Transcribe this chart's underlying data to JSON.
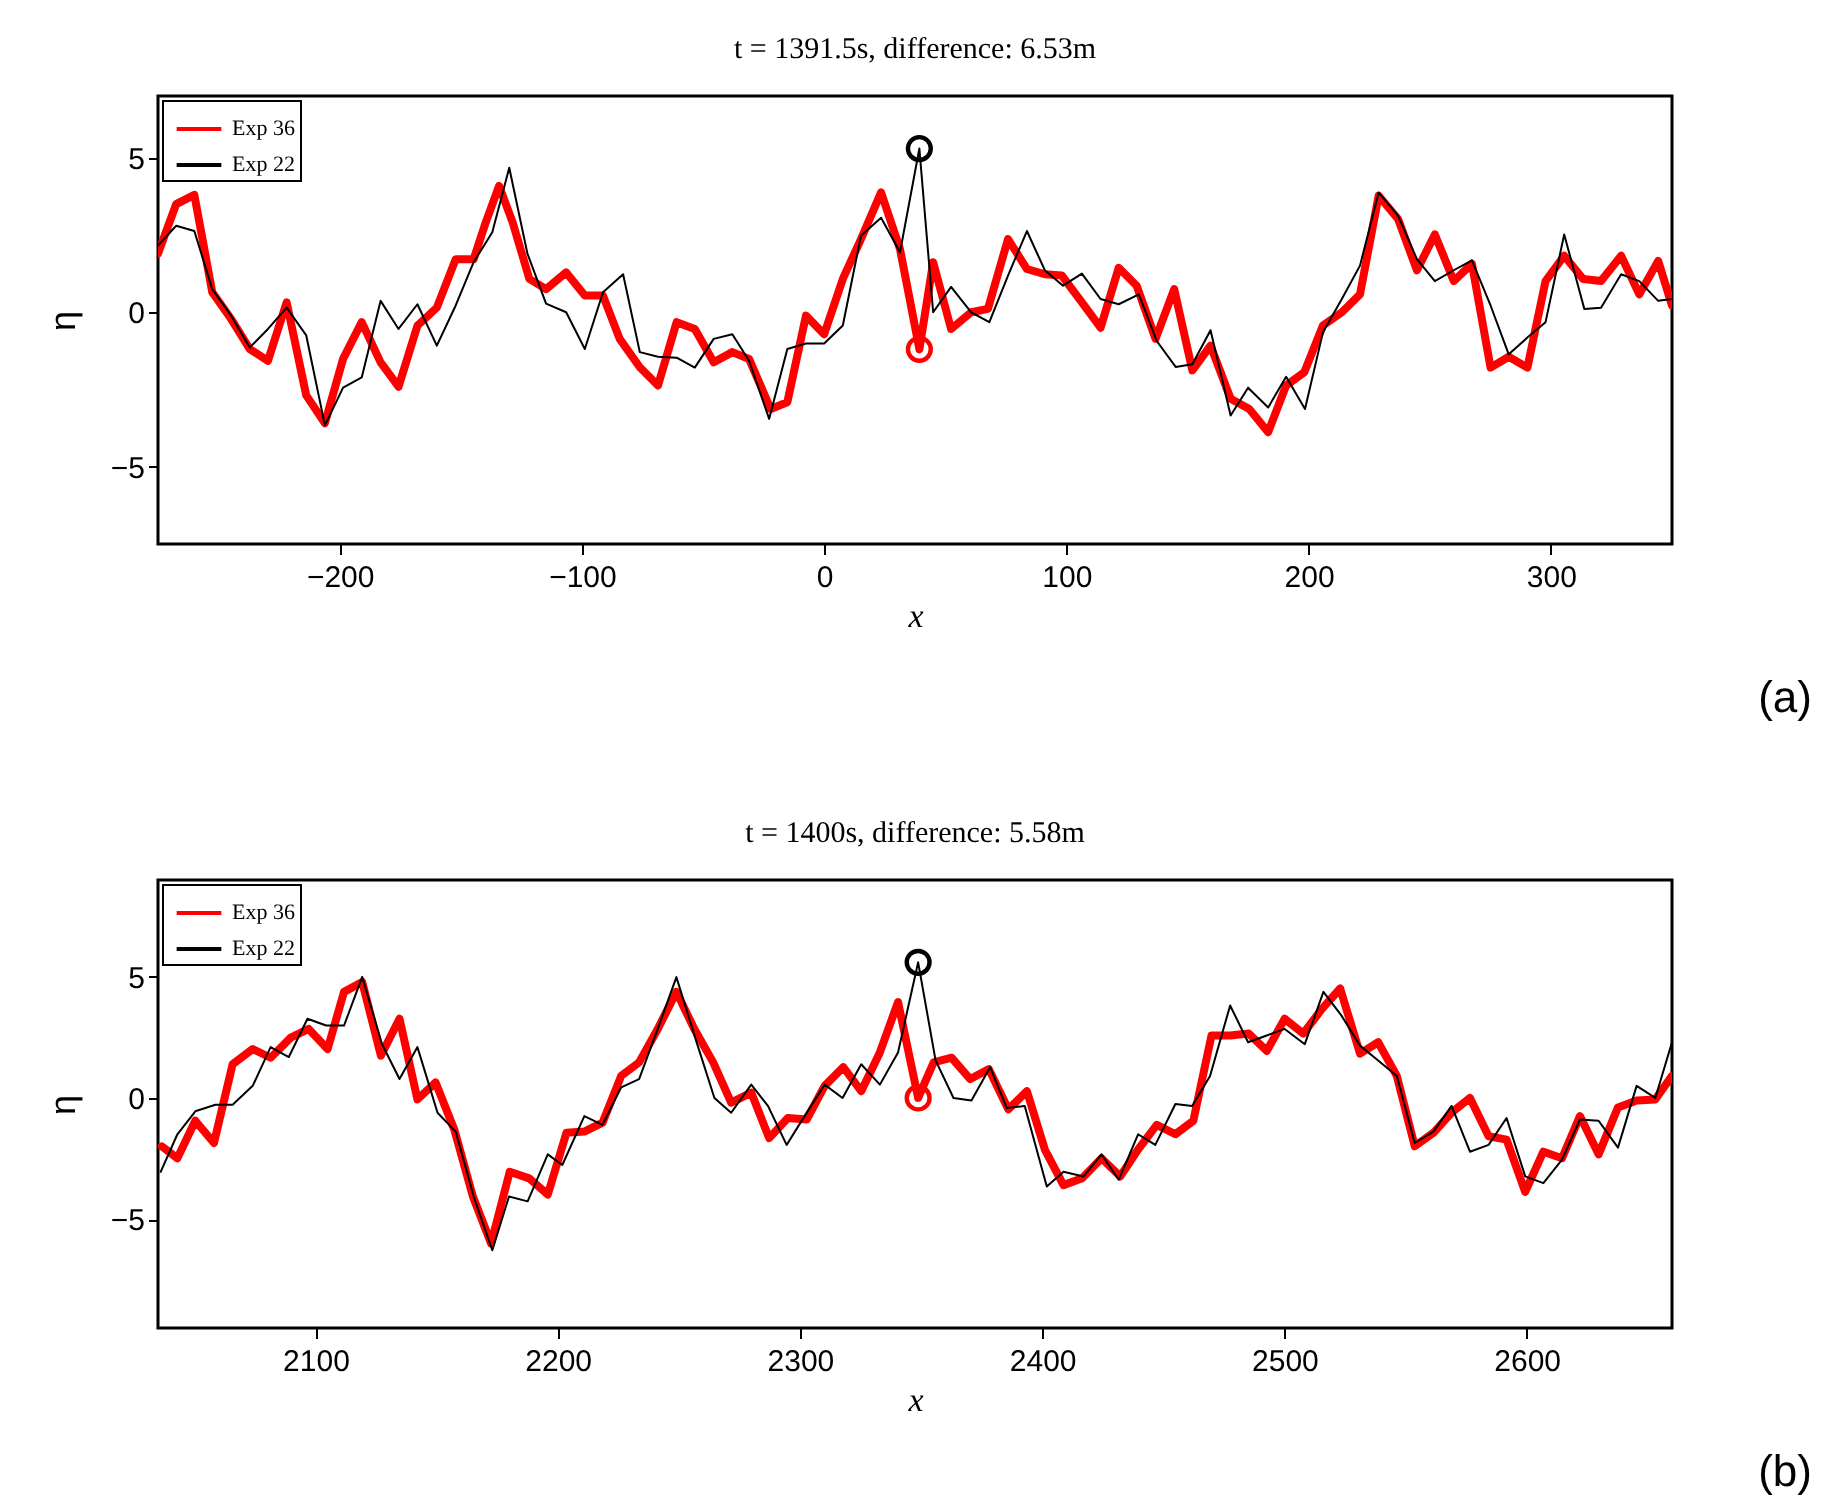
{
  "chart_data": [
    {
      "type": "line",
      "title": "t = 1391.5s, difference: 6.53m",
      "xlabel": "x",
      "ylabel": "η",
      "xlim": [
        -275,
        350
      ],
      "xticks": [
        -200,
        -100,
        0,
        100,
        200,
        300
      ],
      "ylim": [
        -7.5,
        7
      ],
      "yticks": [
        -5,
        0,
        5
      ],
      "legend": "top left",
      "annotations": [
        "(a)"
      ],
      "series": [
        {
          "name": "Exp 36",
          "color": "#ff0000",
          "x": [
            -275,
            -267.5,
            -260,
            -252.6,
            -244.8,
            -237.1,
            -229.6,
            -221.9,
            -213.8,
            -206.1,
            -198.6,
            -190.9,
            -183.1,
            -175.7,
            -167.9,
            -159.9,
            -152.1,
            -144.7,
            -139.7,
            -134.2,
            -128.6,
            -121.7,
            -114.8,
            -106.5,
            -98.8,
            -91.3,
            -84.4,
            -76.1,
            -68.6,
            -60.9,
            -53.4,
            -45.6,
            -37.9,
            -31,
            -22.1,
            -15.2,
            -7.5,
            0,
            7.7,
            15.2,
            23.5,
            31.3,
            39.3,
            45,
            52.4,
            60.7,
            67.6,
            75.9,
            83.7,
            91.1,
            98.1,
            106.4,
            114.1,
            121.6,
            129,
            136.8,
            144.5,
            152,
            159.5,
            167.8,
            175.5,
            183.3,
            190.7,
            198.2,
            205.9,
            213.7,
            221.2,
            228.9,
            236.9,
            244.7,
            252.1,
            259.9,
            267.4,
            275.1,
            282.6,
            290.3,
            297.8,
            305.5,
            313.3,
            320.7,
            329,
            336.5,
            344.3,
            350
          ],
          "values": [
            1.9,
            3.5,
            3.8,
            0.65,
            -0.22,
            -1.19,
            -1.57,
            0.32,
            -2.69,
            -3.59,
            -1.51,
            -0.32,
            -1.62,
            -2.41,
            -0.43,
            0.15,
            1.72,
            1.72,
            2.91,
            4.09,
            2.91,
            1.08,
            0.75,
            1.29,
            0.54,
            0.54,
            -0.86,
            -1.78,
            -2.37,
            -0.32,
            -0.54,
            -1.62,
            -1.29,
            -1.51,
            -3.13,
            -2.91,
            -0.11,
            -0.71,
            1.08,
            2.37,
            3.88,
            2.05,
            -1.2,
            1.62,
            -0.54,
            0,
            0.11,
            2.37,
            1.4,
            1.23,
            1.19,
            0.32,
            -0.5,
            1.44,
            0.86,
            -0.86,
            0.75,
            -1.88,
            -1.08,
            -2.8,
            -3.13,
            -3.88,
            -2.37,
            -1.94,
            -0.43,
            0,
            0.58,
            3.77,
            3.02,
            1.36,
            2.52,
            1.01,
            1.57,
            -1.79,
            -1.44,
            -1.79,
            1.01,
            1.83,
            1.08,
            1.01,
            1.83,
            0.58,
            1.66,
            0.22
          ]
        },
        {
          "name": "Exp 22",
          "color": "#000000",
          "x": [
            -275,
            -267.5,
            -260,
            -252.6,
            -244.8,
            -237.1,
            -229.6,
            -221.9,
            -213.8,
            -206.1,
            -198.6,
            -190.9,
            -183.1,
            -175.7,
            -167.9,
            -159.9,
            -152.1,
            -144.7,
            -137,
            -130,
            -122.5,
            -114.8,
            -106.5,
            -98.8,
            -91.3,
            -83,
            -76.1,
            -68.6,
            -60.9,
            -53.4,
            -45.6,
            -37.9,
            -31,
            -22.7,
            -15.2,
            -7.5,
            0,
            7.7,
            15.2,
            23.5,
            31.3,
            39.3,
            45,
            52.4,
            60.7,
            68.2,
            75.9,
            83.7,
            91.1,
            98.6,
            106.4,
            114.1,
            121.6,
            129.9,
            137.3,
            145.1,
            152,
            159.5,
            167.8,
            175,
            183.3,
            190.7,
            198.5,
            205.9,
            213.7,
            221.2,
            228.9,
            236.9,
            244.7,
            252.1,
            259.9,
            267.4,
            275.1,
            282.6,
            290.3,
            297.8,
            305.5,
            313.8,
            320.7,
            329,
            336.5,
            344.3,
            350
          ],
          "values": [
            2.16,
            2.8,
            2.63,
            0.75,
            -0.11,
            -1.14,
            -0.54,
            0.15,
            -0.75,
            -3.66,
            -2.44,
            -2.11,
            0.37,
            -0.54,
            0.26,
            -1.08,
            0.22,
            1.62,
            2.59,
            4.68,
            1.9,
            0.28,
            0,
            -1.19,
            0.65,
            1.23,
            -1.29,
            -1.44,
            -1.47,
            -1.79,
            -0.86,
            -0.71,
            -1.57,
            -3.45,
            -1.19,
            -1.01,
            -1.01,
            -0.43,
            2.48,
            3.06,
            1.94,
            5.3,
            0,
            0.82,
            0,
            -0.32,
            1.19,
            2.63,
            1.36,
            0.86,
            1.25,
            0.43,
            0.26,
            0.58,
            -0.93,
            -1.77,
            -1.68,
            -0.58,
            -3.34,
            -2.44,
            -3.08,
            -2.09,
            -3.13,
            -0.65,
            0.43,
            1.51,
            3.88,
            3.13,
            1.72,
            1.01,
            1.36,
            1.68,
            0.22,
            -1.36,
            -0.82,
            -0.32,
            2.52,
            0.11,
            0.15,
            1.23,
            1.01,
            0.37,
            0.43
          ]
        },
        {
          "type": "scatter",
          "color": "#000000",
          "marker": "circle",
          "x": [
            39.3
          ],
          "values": [
            5.3
          ]
        },
        {
          "type": "scatter",
          "color": "#ff0000",
          "marker": "circle",
          "x": [
            39.3
          ],
          "values": [
            -1.2
          ]
        }
      ]
    },
    {
      "type": "line",
      "title": "t = 1400s, difference: 5.58m",
      "xlabel": "x",
      "ylabel": "η",
      "xlim": [
        2035,
        2660
      ],
      "xticks": [
        2100,
        2200,
        2300,
        2400,
        2500,
        2600
      ],
      "ylim": [
        -9.5,
        9
      ],
      "yticks": [
        -5,
        0,
        5
      ],
      "legend": "top left",
      "annotations": [
        "(b)"
      ],
      "series": [
        {
          "name": "Exp 36",
          "color": "#ff0000",
          "x": [
            2036.6,
            2043,
            2050.4,
            2058.1,
            2065.8,
            2074.1,
            2081.5,
            2089.8,
            2097.2,
            2105,
            2111.8,
            2119.3,
            2127,
            2134.7,
            2142.1,
            2149.6,
            2157.3,
            2165,
            2172.5,
            2180.2,
            2188.2,
            2195.9,
            2203.6,
            2211,
            2218.5,
            2226.2,
            2233.6,
            2241.3,
            2249,
            2256.4,
            2264.2,
            2271.6,
            2279.9,
            2287.3,
            2295,
            2302.8,
            2310.2,
            2317.9,
            2325.3,
            2333,
            2340.5,
            2348.8,
            2355.2,
            2362.6,
            2370.3,
            2378,
            2386,
            2393.7,
            2401.1,
            2408.8,
            2416.5,
            2424.5,
            2432.2,
            2439.6,
            2447.3,
            2455,
            2462.4,
            2469.9,
            2477.6,
            2485.3,
            2492.7,
            2500.1,
            2507.8,
            2515.5,
            2523,
            2531.2,
            2538.7,
            2546.4,
            2553.8,
            2561.5,
            2569,
            2576.6,
            2584.3,
            2591.7,
            2599.4,
            2606.9,
            2614.6,
            2622,
            2629.7,
            2637.7,
            2645.4,
            2653.1,
            2660
          ],
          "values": [
            -2,
            -2.49,
            -0.94,
            -1.86,
            1.39,
            2.02,
            1.66,
            2.49,
            2.85,
            2.02,
            4.38,
            4.79,
            1.75,
            3.27,
            -0.06,
            0.64,
            -1.3,
            -4.07,
            -6.01,
            -3.05,
            -3.32,
            -3.99,
            -1.44,
            -1.39,
            -1.02,
            0.91,
            1.47,
            2.85,
            4.38,
            2.85,
            1.47,
            -0.19,
            0.22,
            -1.66,
            -0.83,
            -0.89,
            0.5,
            1.27,
            0.28,
            1.88,
            3.96,
            0,
            1.47,
            1.66,
            0.78,
            1.19,
            -0.47,
            0.28,
            -2.13,
            -3.6,
            -3.32,
            -2.49,
            -3.24,
            -2.13,
            -1.11,
            -1.5,
            -0.94,
            2.58,
            2.58,
            2.66,
            1.94,
            3.27,
            2.66,
            3.68,
            4.52,
            1.83,
            2.3,
            0.91,
            -1.99,
            -1.44,
            -0.61,
            0,
            -1.58,
            -1.72,
            -3.88,
            -2.22,
            -2.49,
            -0.75,
            -2.33,
            -0.39,
            -0.11,
            -0.06,
            0.91
          ]
        },
        {
          "name": "Exp 22",
          "color": "#000000",
          "x": [
            2036.1,
            2043,
            2050.4,
            2058.7,
            2065.8,
            2074.1,
            2081.5,
            2089,
            2096.7,
            2104.4,
            2111.8,
            2119.3,
            2127.5,
            2134.7,
            2142.1,
            2150.4,
            2157.9,
            2165.6,
            2173,
            2179.9,
            2187.6,
            2195.9,
            2201.9,
            2211,
            2218.5,
            2226.2,
            2233.6,
            2241.3,
            2249,
            2256.9,
            2264.7,
            2271.6,
            2279.9,
            2286.8,
            2294.5,
            2301.9,
            2310.2,
            2317.6,
            2325.3,
            2333,
            2340.5,
            2348.8,
            2356,
            2363.4,
            2370.8,
            2378.5,
            2385.4,
            2392.8,
            2401.9,
            2408.8,
            2417.1,
            2424.5,
            2431.6,
            2439.6,
            2446.7,
            2455,
            2461.9,
            2469.3,
            2477.6,
            2485,
            2492.7,
            2500.1,
            2508.4,
            2516.1,
            2523.5,
            2531.2,
            2538.7,
            2546.4,
            2553.8,
            2561.5,
            2569,
            2576.6,
            2584.3,
            2591.7,
            2599.4,
            2606.9,
            2614.6,
            2622,
            2629.7,
            2637.7,
            2645.4,
            2653.1,
            2660
          ],
          "values": [
            -3.05,
            -1.5,
            -0.55,
            -0.28,
            -0.28,
            0.5,
            2.1,
            1.69,
            3.27,
            2.99,
            2.99,
            5,
            2.22,
            0.78,
            2.1,
            -0.61,
            -1.39,
            -4.16,
            -6.29,
            -4.07,
            -4.27,
            -2.33,
            -2.77,
            -0.75,
            -1.11,
            0.44,
            0.78,
            2.85,
            4.99,
            2.44,
            0,
            -0.61,
            0.55,
            -0.33,
            -1.94,
            -0.75,
            0.55,
            0,
            1.39,
            0.55,
            1.88,
            5.6,
            1.55,
            0,
            -0.11,
            1.27,
            -0.42,
            -0.33,
            -3.66,
            -3.05,
            -3.24,
            -2.33,
            -3.38,
            -1.5,
            -1.94,
            -0.25,
            -0.33,
            0.91,
            3.82,
            2.3,
            2.58,
            2.85,
            2.22,
            4.38,
            3.41,
            2.16,
            1.55,
            0.91,
            -1.86,
            -1.39,
            -0.33,
            -2.22,
            -1.94,
            -0.83,
            -3.24,
            -3.52,
            -2.55,
            -0.89,
            -0.94,
            -2.05,
            0.5,
            0,
            2.3
          ]
        },
        {
          "type": "scatter",
          "color": "#000000",
          "marker": "circle",
          "x": [
            2348.8
          ],
          "values": [
            5.6
          ]
        },
        {
          "type": "scatter",
          "color": "#ff0000",
          "marker": "circle",
          "x": [
            2348.8
          ],
          "values": [
            0
          ]
        }
      ]
    }
  ]
}
